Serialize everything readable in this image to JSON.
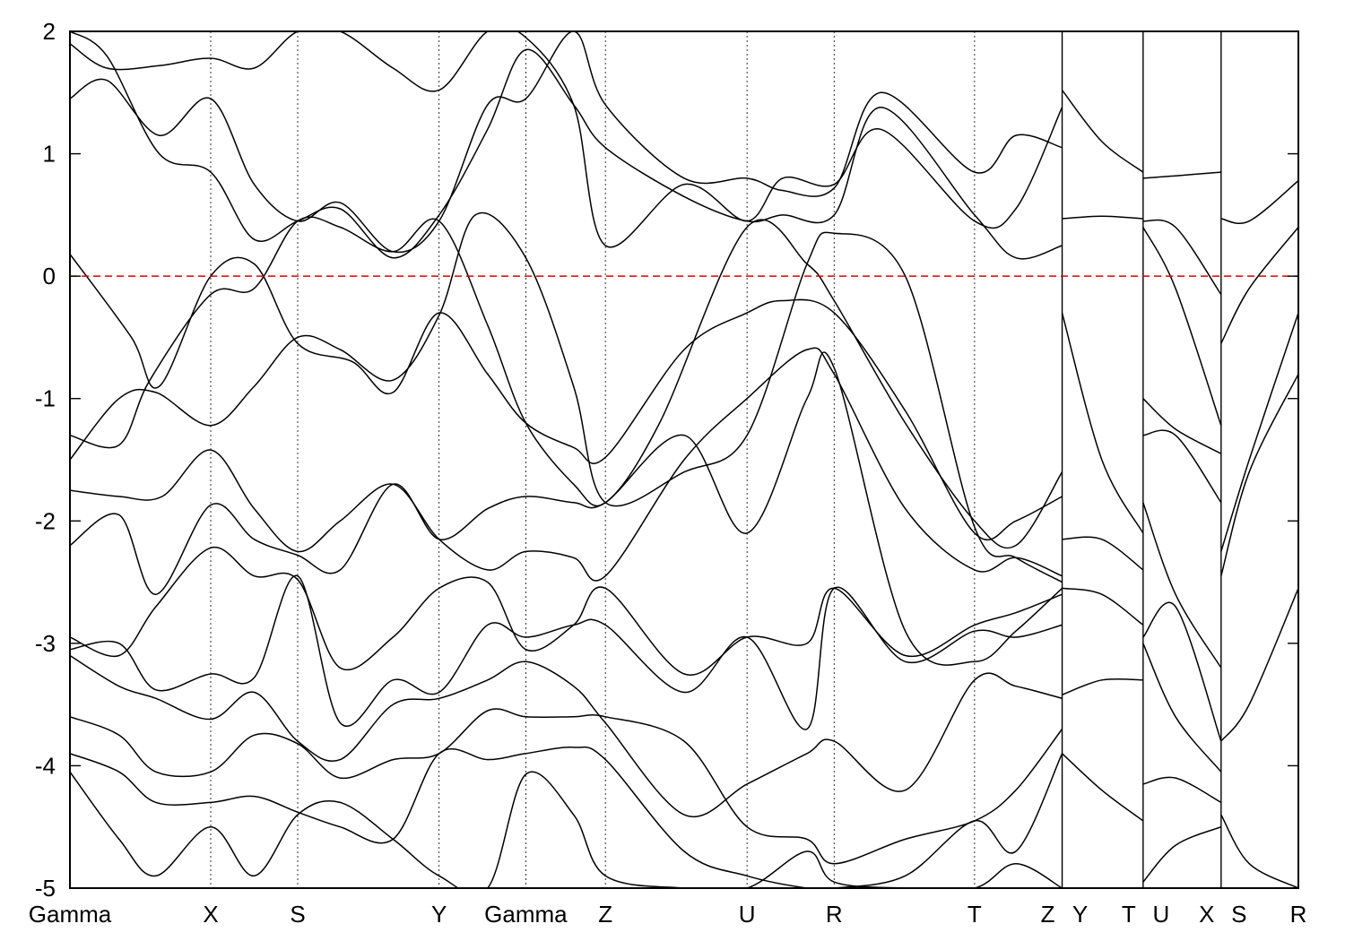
{
  "chart_data": {
    "type": "line",
    "title": "",
    "xlabel": "",
    "ylabel": "",
    "ylim": [
      -5,
      2
    ],
    "yticks": [
      2,
      1,
      0,
      -1,
      -2,
      -3,
      -4,
      -5
    ],
    "ytick_labels": [
      "2",
      "1",
      "0",
      "-1",
      "-2",
      "-3",
      "-4",
      "-5"
    ],
    "kpath_range": [
      0,
      1
    ],
    "kpoints": [
      {
        "label": "Gamma",
        "x": 0.0
      },
      {
        "label": "X",
        "x": 0.1146
      },
      {
        "label": "S",
        "x": 0.1854
      },
      {
        "label": "Y",
        "x": 0.3005
      },
      {
        "label": "Gamma",
        "x": 0.3711
      },
      {
        "label": "Z",
        "x": 0.4359
      },
      {
        "label": "U",
        "x": 0.5512
      },
      {
        "label": "R",
        "x": 0.6221
      },
      {
        "label": "T",
        "x": 0.7364
      },
      {
        "label": "Z",
        "x": 0.8077
      },
      {
        "label": "Y",
        "x": 0.8077
      },
      {
        "label": "T",
        "x": 0.8736
      },
      {
        "label": "U",
        "x": 0.8736
      },
      {
        "label": "X",
        "x": 0.9371
      },
      {
        "label": "S",
        "x": 0.9371
      },
      {
        "label": "R",
        "x": 1.0
      }
    ],
    "path_breaks": [
      0.8077,
      0.8736,
      0.9371
    ],
    "fermi_level": 0,
    "fermi_line_color": "#dd0000",
    "band_color": "#000000",
    "series": [
      {
        "x": [
          0,
          0.05,
          0.0727,
          0.1146,
          0.15,
          0.1854,
          0.23,
          0.263,
          0.3005,
          0.34,
          0.3711,
          0.41,
          0.4359,
          0.5,
          0.5512,
          0.58,
          0.6221,
          0.68,
          0.7364,
          0.77,
          0.8077
        ],
        "y": [
          0.18,
          -0.5,
          -0.9,
          0.0,
          0.1,
          -0.55,
          -0.7,
          -0.95,
          -0.3,
          -0.8,
          -1.2,
          -1.4,
          -1.48,
          -0.6,
          -0.3,
          -0.2,
          -0.3,
          -1.1,
          -2.1,
          -2.0,
          -1.8
        ]
      },
      {
        "x": [
          0,
          0.04,
          0.065,
          0.1146,
          0.15,
          0.1854,
          0.22,
          0.263,
          0.3005,
          0.34,
          0.3711,
          0.41,
          0.4359,
          0.48,
          0.5512,
          0.6,
          0.6221,
          0.68,
          0.7364,
          0.77,
          0.8077
        ],
        "y": [
          -1.3,
          -1.38,
          -0.85,
          -0.15,
          -0.1,
          0.45,
          0.4,
          0.2,
          0.45,
          -0.4,
          -1.2,
          -1.7,
          -1.85,
          -1.2,
          0.4,
          0.1,
          -0.2,
          -1.2,
          -2.0,
          -2.2,
          -1.6
        ]
      },
      {
        "x": [
          0,
          0.04,
          0.07,
          0.1146,
          0.15,
          0.1854,
          0.22,
          0.263,
          0.3005,
          0.33,
          0.3711,
          0.41,
          0.4359,
          0.5,
          0.5512,
          0.6,
          0.6221,
          0.68,
          0.7364,
          0.77,
          0.8077
        ],
        "y": [
          -1.5,
          -1.0,
          -0.95,
          -1.22,
          -0.9,
          -0.5,
          -0.6,
          -0.85,
          -0.32,
          0.5,
          0.15,
          -0.9,
          -1.85,
          -1.6,
          -1.3,
          0.1,
          0.35,
          0.0,
          -2.05,
          -2.3,
          -2.5
        ]
      },
      {
        "x": [
          0,
          0.04,
          0.075,
          0.1146,
          0.15,
          0.1854,
          0.22,
          0.263,
          0.3005,
          0.34,
          0.3711,
          0.41,
          0.4359,
          0.5,
          0.5512,
          0.6,
          0.6221,
          0.68,
          0.7364,
          0.77,
          0.8077
        ],
        "y": [
          -1.75,
          -1.8,
          -1.8,
          -1.42,
          -1.9,
          -2.25,
          -2.0,
          -1.7,
          -2.15,
          -2.4,
          -2.25,
          -2.3,
          -2.45,
          -1.5,
          -1.0,
          -0.6,
          -0.8,
          -1.9,
          -2.4,
          -2.3,
          -2.45
        ]
      },
      {
        "x": [
          0,
          0.04,
          0.07,
          0.1146,
          0.15,
          0.1854,
          0.22,
          0.263,
          0.3005,
          0.34,
          0.3711,
          0.41,
          0.4359,
          0.5,
          0.5512,
          0.6,
          0.6221,
          0.68,
          0.7364,
          0.77,
          0.8077
        ],
        "y": [
          -2.2,
          -1.95,
          -2.6,
          -1.87,
          -2.15,
          -2.28,
          -2.4,
          -1.7,
          -2.15,
          -1.9,
          -1.8,
          -1.85,
          -1.85,
          -1.3,
          -2.1,
          -1.0,
          -0.75,
          -2.9,
          -3.15,
          -2.9,
          -2.55
        ]
      },
      {
        "x": [
          0,
          0.04,
          0.07,
          0.1146,
          0.15,
          0.1854,
          0.22,
          0.263,
          0.3005,
          0.34,
          0.3711,
          0.41,
          0.4359,
          0.5,
          0.5512,
          0.6,
          0.6221,
          0.68,
          0.7364,
          0.77,
          0.8077
        ],
        "y": [
          -2.95,
          -3.1,
          -2.7,
          -2.22,
          -2.45,
          -2.48,
          -3.2,
          -2.95,
          -2.55,
          -2.5,
          -3.05,
          -2.85,
          -2.55,
          -3.25,
          -2.95,
          -3.0,
          -2.55,
          -3.1,
          -2.85,
          -2.75,
          -2.6
        ]
      },
      {
        "x": [
          0,
          0.04,
          0.07,
          0.1146,
          0.15,
          0.1854,
          0.22,
          0.263,
          0.3005,
          0.34,
          0.3711,
          0.41,
          0.4359,
          0.5,
          0.5512,
          0.6,
          0.6221,
          0.68,
          0.7364,
          0.77,
          0.8077
        ],
        "y": [
          -3.05,
          -3.0,
          -3.38,
          -3.25,
          -3.28,
          -2.45,
          -3.65,
          -3.3,
          -3.4,
          -2.85,
          -2.95,
          -2.85,
          -2.85,
          -3.4,
          -2.95,
          -3.7,
          -2.55,
          -3.15,
          -2.9,
          -2.95,
          -2.85
        ]
      },
      {
        "x": [
          0,
          0.04,
          0.07,
          0.1146,
          0.15,
          0.1854,
          0.22,
          0.263,
          0.3005,
          0.34,
          0.3711,
          0.41,
          0.4359,
          0.5,
          0.5512,
          0.6,
          0.6221,
          0.68,
          0.7364,
          0.77,
          0.8077
        ],
        "y": [
          -3.1,
          -3.35,
          -3.45,
          -3.62,
          -3.4,
          -3.8,
          -3.95,
          -3.5,
          -3.45,
          -3.3,
          -3.15,
          -3.35,
          -3.65,
          -4.4,
          -4.15,
          -3.9,
          -3.8,
          -4.2,
          -3.3,
          -3.35,
          -3.45
        ]
      },
      {
        "x": [
          0,
          0.04,
          0.07,
          0.1146,
          0.15,
          0.1854,
          0.22,
          0.263,
          0.3005,
          0.34,
          0.3711,
          0.41,
          0.4359,
          0.5,
          0.5512,
          0.6,
          0.6221,
          0.68,
          0.7364,
          0.77,
          0.8077
        ],
        "y": [
          -3.6,
          -3.75,
          -4.05,
          -4.05,
          -3.75,
          -3.82,
          -4.1,
          -3.95,
          -3.9,
          -3.55,
          -3.6,
          -3.6,
          -3.6,
          -3.8,
          -4.5,
          -4.6,
          -4.8,
          -4.6,
          -4.45,
          -4.2,
          -3.7
        ]
      },
      {
        "x": [
          0,
          0.04,
          0.07,
          0.1146,
          0.15,
          0.1854,
          0.22,
          0.263,
          0.3005,
          0.34,
          0.3711,
          0.41,
          0.4359,
          0.5,
          0.5512,
          0.6,
          0.6221,
          0.68,
          0.7364,
          0.77,
          0.8077
        ],
        "y": [
          -3.9,
          -4.05,
          -4.3,
          -4.3,
          -4.25,
          -4.38,
          -4.5,
          -4.6,
          -3.9,
          -3.95,
          -3.9,
          -3.85,
          -3.95,
          -4.7,
          -4.9,
          -5.0,
          -5.0,
          -4.9,
          -4.45,
          -4.7,
          -3.9
        ]
      },
      {
        "x": [
          0,
          0.04,
          0.07,
          0.1146,
          0.15,
          0.1854,
          0.22,
          0.263,
          0.3005,
          0.34,
          0.3711,
          0.41,
          0.4359,
          0.5,
          0.5512,
          0.6,
          0.6221,
          0.68,
          0.7364,
          0.77,
          0.8077
        ],
        "y": [
          -4.05,
          -4.6,
          -4.9,
          -4.5,
          -4.9,
          -4.4,
          -4.3,
          -4.6,
          -4.9,
          -5.0,
          -4.07,
          -4.4,
          -4.9,
          -5.0,
          -5.0,
          -4.7,
          -4.95,
          -5.0,
          -5.0,
          -4.8,
          -5.0
        ]
      },
      {
        "x": [
          0,
          0.03,
          0.0727,
          0.1146,
          0.15,
          0.1854,
          0.22,
          0.263,
          0.3005,
          0.34,
          0.3711,
          0.41,
          0.4359,
          0.5,
          0.5512,
          0.58,
          0.6221,
          0.66,
          0.7364,
          0.77,
          0.8077
        ],
        "y": [
          1.45,
          1.6,
          1.15,
          1.45,
          0.75,
          0.45,
          0.6,
          0.2,
          0.45,
          1.4,
          1.45,
          2.0,
          1.4,
          0.8,
          0.8,
          0.7,
          0.72,
          1.5,
          0.85,
          1.15,
          1.05
        ]
      },
      {
        "x": [
          0,
          0.03,
          0.0727,
          0.1146,
          0.15,
          0.1854,
          0.22,
          0.263,
          0.3005,
          0.34,
          0.3711,
          0.41,
          0.4359,
          0.5,
          0.5512,
          0.58,
          0.6221,
          0.66,
          0.7364,
          0.77,
          0.8077
        ],
        "y": [
          2.0,
          1.8,
          1.0,
          0.85,
          0.3,
          0.45,
          0.55,
          0.15,
          0.5,
          1.2,
          1.85,
          1.4,
          1.05,
          0.65,
          0.45,
          0.5,
          0.5,
          1.38,
          0.5,
          0.15,
          0.25
        ]
      },
      {
        "x": [
          0,
          0.03,
          0.0727,
          0.1146,
          0.15,
          0.1854,
          0.22,
          0.263,
          0.3005,
          0.34,
          0.3711,
          0.41,
          0.4359,
          0.5,
          0.5512,
          0.58,
          0.6221,
          0.66,
          0.7364,
          0.77,
          0.8077
        ],
        "y": [
          1.9,
          1.7,
          1.72,
          1.78,
          1.7,
          2.0,
          2.0,
          1.7,
          1.52,
          2.0,
          1.95,
          1.4,
          0.25,
          0.75,
          0.45,
          0.8,
          0.75,
          1.2,
          0.45,
          0.55,
          1.38
        ]
      },
      {
        "x": [
          0.8077,
          0.84,
          0.8736
        ],
        "y": [
          1.52,
          1.1,
          0.85
        ]
      },
      {
        "x": [
          0.8077,
          0.84,
          0.8736
        ],
        "y": [
          0.47,
          0.49,
          0.47
        ]
      },
      {
        "x": [
          0.8077,
          0.84,
          0.8736
        ],
        "y": [
          -0.3,
          -1.5,
          -2.1
        ]
      },
      {
        "x": [
          0.8077,
          0.84,
          0.8736
        ],
        "y": [
          -2.15,
          -2.15,
          -2.4
        ]
      },
      {
        "x": [
          0.8077,
          0.84,
          0.8736
        ],
        "y": [
          -2.55,
          -2.6,
          -2.85
        ]
      },
      {
        "x": [
          0.8077,
          0.84,
          0.8736
        ],
        "y": [
          -3.42,
          -3.3,
          -3.3
        ]
      },
      {
        "x": [
          0.8077,
          0.84,
          0.8736
        ],
        "y": [
          -3.9,
          -4.2,
          -4.45
        ]
      },
      {
        "x": [
          0.8736,
          0.9,
          0.9371
        ],
        "y": [
          0.8,
          0.82,
          0.85
        ]
      },
      {
        "x": [
          0.8736,
          0.9,
          0.9371
        ],
        "y": [
          0.45,
          0.4,
          -0.15
        ]
      },
      {
        "x": [
          0.8736,
          0.9,
          0.9371
        ],
        "y": [
          0.4,
          -0.1,
          -1.22
        ]
      },
      {
        "x": [
          0.8736,
          0.9,
          0.9371
        ],
        "y": [
          -1.0,
          -1.25,
          -1.45
        ]
      },
      {
        "x": [
          0.8736,
          0.9,
          0.9371
        ],
        "y": [
          -1.3,
          -1.3,
          -1.85
        ]
      },
      {
        "x": [
          0.8736,
          0.9,
          0.9371
        ],
        "y": [
          -1.85,
          -2.6,
          -3.2
        ]
      },
      {
        "x": [
          0.8736,
          0.9,
          0.9371
        ],
        "y": [
          -2.95,
          -2.7,
          -3.8
        ]
      },
      {
        "x": [
          0.8736,
          0.9,
          0.9371
        ],
        "y": [
          -3.0,
          -3.6,
          -4.05
        ]
      },
      {
        "x": [
          0.8736,
          0.9,
          0.9371
        ],
        "y": [
          -4.15,
          -4.1,
          -4.3
        ]
      },
      {
        "x": [
          0.8736,
          0.9,
          0.9371
        ],
        "y": [
          -4.95,
          -4.65,
          -4.5
        ]
      },
      {
        "x": [
          0.9371,
          0.96,
          1.0
        ],
        "y": [
          0.47,
          0.45,
          0.78
        ]
      },
      {
        "x": [
          0.9371,
          0.96,
          1.0
        ],
        "y": [
          -0.55,
          -0.1,
          0.4
        ]
      },
      {
        "x": [
          0.9371,
          0.96,
          1.0
        ],
        "y": [
          -2.25,
          -1.5,
          -0.3
        ]
      },
      {
        "x": [
          0.9371,
          0.96,
          1.0
        ],
        "y": [
          -2.45,
          -1.6,
          -0.8
        ]
      },
      {
        "x": [
          0.9371,
          0.96,
          1.0
        ],
        "y": [
          -3.8,
          -3.5,
          -2.55
        ]
      },
      {
        "x": [
          0.9371,
          0.96,
          1.0
        ],
        "y": [
          -4.4,
          -4.8,
          -5.0
        ]
      }
    ]
  }
}
